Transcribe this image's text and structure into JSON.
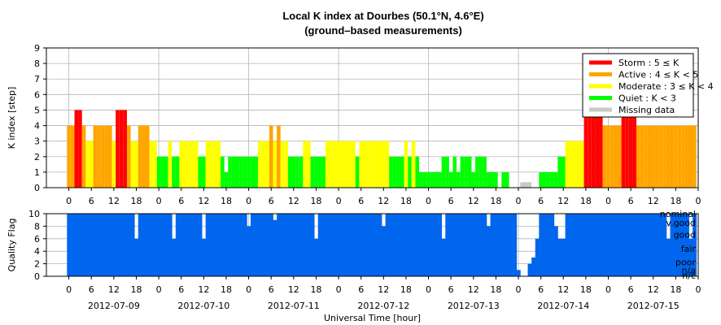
{
  "chart_data": [
    {
      "type": "bar",
      "title": "Local K index at Dourbes (50.1°N, 4.6°E)",
      "subtitle": "(ground–based measurements)",
      "ylabel": "K index [step]",
      "ylim": [
        0,
        9
      ],
      "yticks": [
        "0",
        "1",
        "2",
        "3",
        "4",
        "5",
        "6",
        "7",
        "8",
        "9"
      ],
      "x_start_hour": 0,
      "x_end_hour": 168,
      "bin_hours": 1,
      "grid": true,
      "legend_position": "top-right",
      "legend": [
        {
          "label": "Storm : 5 ≤ K",
          "color": "#ff0000"
        },
        {
          "label": "Active : 4 ≤ K < 5",
          "color": "#ffa500"
        },
        {
          "label": "Moderate : 3 ≤ K < 4",
          "color": "#ffff00"
        },
        {
          "label": "Quiet : K < 3",
          "color": "#00ff00"
        },
        {
          "label": "Missing data",
          "color": "#c8c8c8"
        }
      ],
      "values": [
        4,
        4,
        5,
        5,
        4,
        3,
        3,
        4,
        4,
        4,
        4,
        4,
        3,
        5,
        5,
        5,
        4,
        3,
        3,
        4,
        4,
        4,
        3,
        3,
        2,
        2,
        2,
        3,
        2,
        2,
        3,
        3,
        3,
        3,
        3,
        2,
        2,
        3,
        3,
        3,
        3,
        2,
        1,
        2,
        2,
        2,
        2,
        2,
        2,
        2,
        2,
        3,
        3,
        3,
        4,
        3,
        4,
        3,
        3,
        2,
        2,
        2,
        2,
        3,
        3,
        2,
        2,
        2,
        2,
        3,
        3,
        3,
        3,
        3,
        3,
        3,
        3,
        2,
        3,
        3,
        3,
        3,
        3,
        3,
        3,
        3,
        2,
        2,
        2,
        2,
        3,
        2,
        3,
        2,
        1,
        1,
        1,
        1,
        1,
        1,
        2,
        2,
        1,
        2,
        1,
        2,
        2,
        2,
        1,
        2,
        2,
        2,
        1,
        1,
        1,
        0,
        1,
        1,
        0,
        0,
        0,
        0,
        0,
        0,
        0,
        0,
        1,
        1,
        1,
        1,
        1,
        2,
        2,
        3,
        3,
        3,
        3,
        3,
        5,
        5,
        5,
        5,
        5,
        4,
        4,
        4,
        4,
        4,
        5,
        5,
        5,
        5,
        4,
        4,
        4,
        4,
        4,
        4,
        4,
        4,
        4,
        4,
        4,
        4,
        4,
        4,
        4,
        4
      ],
      "missing_hours": [
        121,
        122,
        123
      ]
    },
    {
      "type": "bar",
      "ylabel": "Quality Flag",
      "ylim": [
        0,
        10
      ],
      "yticks": [
        "0",
        "2",
        "4",
        "6",
        "8",
        "10"
      ],
      "bar_color": "#0066ee",
      "flag_labels": [
        "nominal",
        "v.good",
        "good",
        "fair",
        "poor",
        "n/a",
        "n/c"
      ],
      "flag_values": [
        10.0,
        8.6,
        6.7,
        4.4,
        2.3,
        1.0,
        0.0
      ],
      "xlabel": "Universal Time [hour]",
      "xtick_labels": [
        "0",
        "6",
        "12",
        "18"
      ],
      "dates": [
        "2012-07-09",
        "2012-07-10",
        "2012-07-11",
        "2012-07-12",
        "2012-07-13",
        "2012-07-14",
        "2012-07-15"
      ],
      "quality_dips": [
        {
          "hour": 18,
          "value": 6
        },
        {
          "hour": 28,
          "value": 6
        },
        {
          "hour": 36,
          "value": 6
        },
        {
          "hour": 48,
          "value": 8
        },
        {
          "hour": 55,
          "value": 9
        },
        {
          "hour": 66,
          "value": 6
        },
        {
          "hour": 84,
          "value": 8
        },
        {
          "hour": 100,
          "value": 6
        },
        {
          "hour": 112,
          "value": 8
        },
        {
          "hour": 120,
          "value": 1
        },
        {
          "hour": 121,
          "value": 0
        },
        {
          "hour": 122,
          "value": 0
        },
        {
          "hour": 123,
          "value": 2
        },
        {
          "hour": 124,
          "value": 3
        },
        {
          "hour": 125,
          "value": 6
        },
        {
          "hour": 130,
          "value": 8
        },
        {
          "hour": 131,
          "value": 6
        },
        {
          "hour": 132,
          "value": 6
        },
        {
          "hour": 160,
          "value": 6
        },
        {
          "hour": 166,
          "value": 6
        }
      ]
    }
  ]
}
